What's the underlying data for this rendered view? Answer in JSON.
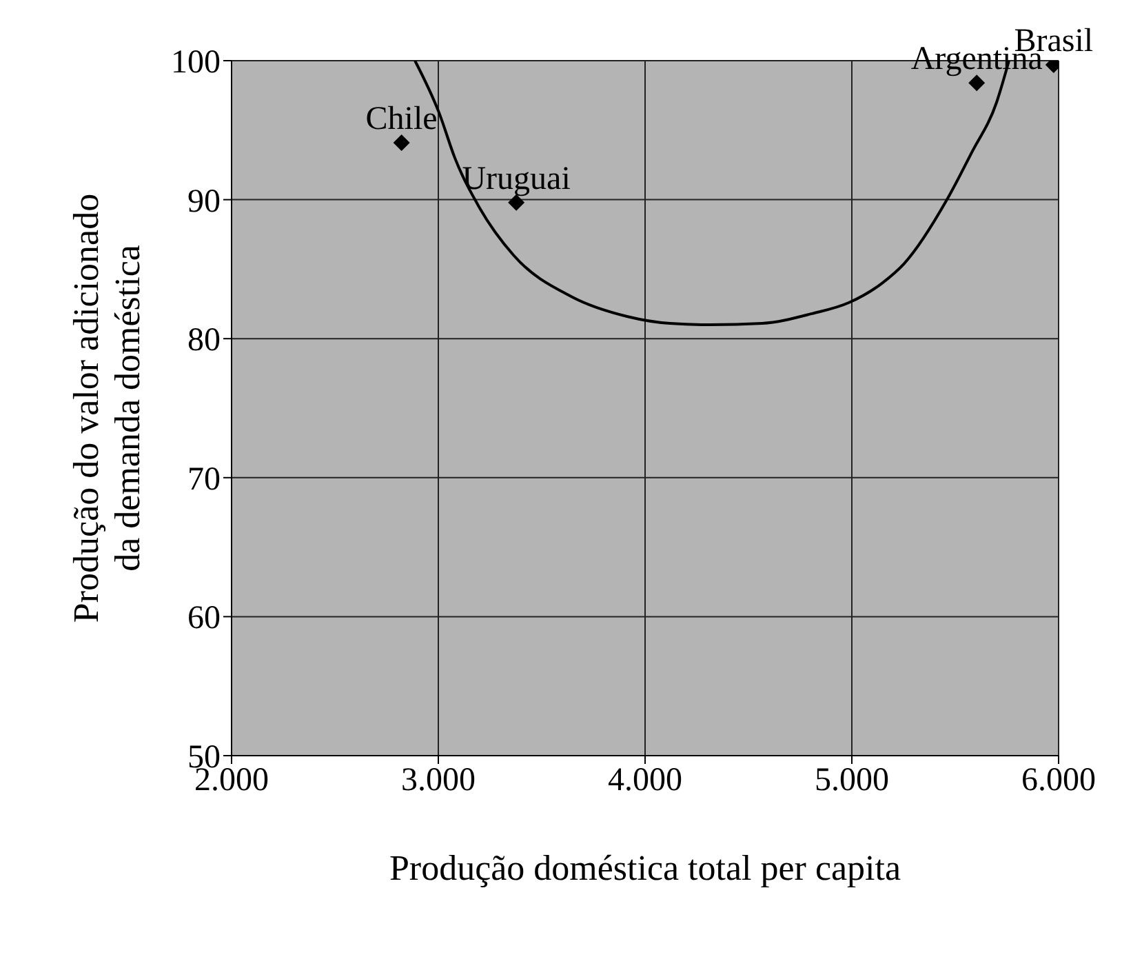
{
  "chart_data": {
    "type": "scatter",
    "xlabel": "Produção doméstica total per capita",
    "ylabel": "Produção do valor adicionado\nda demanda doméstica",
    "xlim": [
      2000,
      6000
    ],
    "ylim": [
      50,
      100
    ],
    "xticks": [
      {
        "value": 2000,
        "label": "2.000"
      },
      {
        "value": 3000,
        "label": "3.000"
      },
      {
        "value": 4000,
        "label": "4.000"
      },
      {
        "value": 5000,
        "label": "5.000"
      },
      {
        "value": 6000,
        "label": "6.000"
      }
    ],
    "yticks": [
      50,
      60,
      70,
      80,
      90,
      100
    ],
    "grid": true,
    "marker": "diamond",
    "series": [
      {
        "color": "#000000",
        "x": [
          2822,
          3377,
          5604,
          5976
        ],
        "values": [
          94.1,
          89.8,
          98.4,
          99.7
        ]
      },
      {
        "type": "line",
        "color": "#000000",
        "marker": "none",
        "x": [
          2887,
          3005,
          3080,
          3200,
          3364,
          3647,
          3913,
          4120,
          4313,
          4567,
          4807,
          4987,
          5147,
          5253,
          5460,
          5580,
          5700,
          5760
        ],
        "values": [
          100,
          96.2,
          93.0,
          89.4,
          86.0,
          83.0,
          81.6,
          81.1,
          81.0,
          81.1,
          81.8,
          82.6,
          84.0,
          85.4,
          90.0,
          93.4,
          97.0,
          100
        ]
      }
    ],
    "annotations": [
      {
        "text": "Chile",
        "x": 2822,
        "y": 94.1
      },
      {
        "text": "Uruguai",
        "x": 3377,
        "y": 89.8
      },
      {
        "text": "Argentina",
        "x": 5604,
        "y": 98.4
      },
      {
        "text": "Brasil",
        "x": 5976,
        "y": 99.7
      }
    ]
  }
}
